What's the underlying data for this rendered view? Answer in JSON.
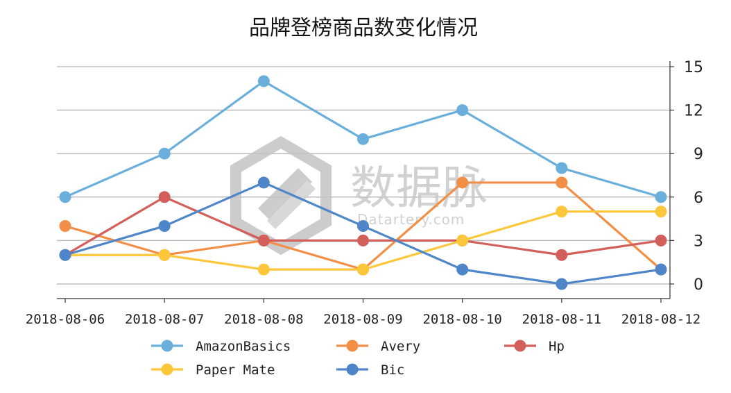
{
  "chart_data": {
    "type": "line",
    "title": "品牌登榜商品数变化情况",
    "categories": [
      "2018-08-06",
      "2018-08-07",
      "2018-08-08",
      "2018-08-09",
      "2018-08-10",
      "2018-08-11",
      "2018-08-12"
    ],
    "ylim": [
      0,
      15
    ],
    "yticks": [
      0,
      3,
      6,
      9,
      12,
      15
    ],
    "y_axis_side": "right",
    "grid": "horizontal",
    "legend_placement": "bottom",
    "series": [
      {
        "name": "AmazonBasics",
        "color": "#6aafdc",
        "values": [
          6,
          9,
          14,
          10,
          12,
          8,
          6
        ]
      },
      {
        "name": "Avery",
        "color": "#f28e45",
        "values": [
          4,
          2,
          3,
          1,
          7,
          7,
          1
        ]
      },
      {
        "name": "Hp",
        "color": "#d35f5a",
        "values": [
          2,
          6,
          3,
          3,
          3,
          2,
          3
        ]
      },
      {
        "name": "Paper Mate",
        "color": "#fcc73a",
        "values": [
          2,
          2,
          1,
          1,
          3,
          5,
          5
        ]
      },
      {
        "name": "Bic",
        "color": "#4f86c9",
        "values": [
          2,
          4,
          7,
          4,
          1,
          0,
          1
        ]
      }
    ]
  },
  "watermark": {
    "text_cn": "数据脉",
    "text_en": "Datartery.com"
  }
}
